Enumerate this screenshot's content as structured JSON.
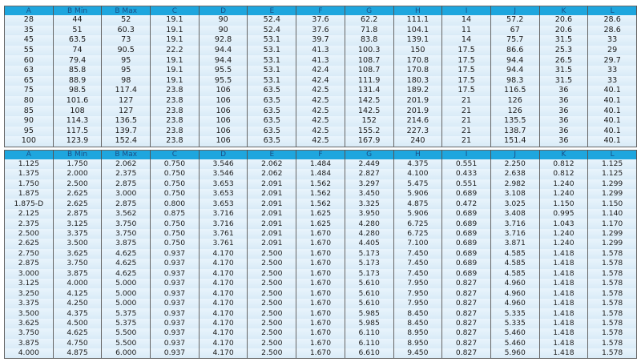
{
  "columns": [
    "A",
    "B Min",
    "B Max",
    "C",
    "D",
    "E",
    "F",
    "G",
    "H",
    "I",
    "J",
    "K",
    "L"
  ],
  "metric_rows": [
    [
      "28",
      "44",
      "52",
      "19.1",
      "90",
      "52.4",
      "37.6",
      "62.2",
      "111.1",
      "14",
      "57.2",
      "20.6",
      "28.6"
    ],
    [
      "35",
      "51",
      "60.3",
      "19.1",
      "90",
      "52.4",
      "37.6",
      "71.8",
      "104.1",
      "11",
      "67",
      "20.6",
      "28.6"
    ],
    [
      "45",
      "63.5",
      "73",
      "19.1",
      "92.8",
      "53.1",
      "39.7",
      "83.8",
      "139.1",
      "14",
      "75.7",
      "31.5",
      "33"
    ],
    [
      "55",
      "74",
      "90.5",
      "22.2",
      "94.4",
      "53.1",
      "41.3",
      "100.3",
      "150",
      "17.5",
      "86.6",
      "25.3",
      "29"
    ],
    [
      "60",
      "79.4",
      "95",
      "19.1",
      "94.4",
      "53.1",
      "41.3",
      "108.7",
      "170.8",
      "17.5",
      "94.4",
      "26.5",
      "29.7"
    ],
    [
      "63",
      "85.8",
      "95",
      "19.1",
      "95.5",
      "53.1",
      "42.4",
      "108.7",
      "170.8",
      "17.5",
      "94.4",
      "31.5",
      "33"
    ],
    [
      "65",
      "88.9",
      "98",
      "19.1",
      "95.5",
      "53.1",
      "42.4",
      "111.9",
      "180.3",
      "17.5",
      "98.3",
      "31.5",
      "33"
    ],
    [
      "75",
      "98.5",
      "117.4",
      "23.8",
      "106",
      "63.5",
      "42.5",
      "131.4",
      "189.2",
      "17.5",
      "116.5",
      "36",
      "40.1"
    ],
    [
      "80",
      "101.6",
      "127",
      "23.8",
      "106",
      "63.5",
      "42.5",
      "142.5",
      "201.9",
      "21",
      "126",
      "36",
      "40.1"
    ],
    [
      "85",
      "108",
      "127",
      "23.8",
      "106",
      "63.5",
      "42.5",
      "142.5",
      "201.9",
      "21",
      "126",
      "36",
      "40.1"
    ],
    [
      "90",
      "114.3",
      "136.5",
      "23.8",
      "106",
      "63.5",
      "42.5",
      "152",
      "214.6",
      "21",
      "135.5",
      "36",
      "40.1"
    ],
    [
      "95",
      "117.5",
      "139.7",
      "23.8",
      "106",
      "63.5",
      "42.5",
      "155.2",
      "227.3",
      "21",
      "138.7",
      "36",
      "40.1"
    ],
    [
      "100",
      "123.9",
      "152.4",
      "23.8",
      "106",
      "63.5",
      "42.5",
      "167.9",
      "240",
      "21",
      "151.4",
      "36",
      "40.1"
    ]
  ],
  "imperial_rows": [
    [
      "1.125",
      "1.750",
      "2.062",
      "0.750",
      "3.546",
      "2.062",
      "1.484",
      "2.449",
      "4.375",
      "0.551",
      "2.250",
      "0.812",
      "1.125"
    ],
    [
      "1.375",
      "2.000",
      "2.375",
      "0.750",
      "3.546",
      "2.062",
      "1.484",
      "2.827",
      "4.100",
      "0.433",
      "2.638",
      "0.812",
      "1.125"
    ],
    [
      "1.750",
      "2.500",
      "2.875",
      "0.750",
      "3.653",
      "2.091",
      "1.562",
      "3.297",
      "5.475",
      "0.551",
      "2.982",
      "1.240",
      "1.299"
    ],
    [
      "1.875",
      "2.625",
      "3.000",
      "0.750",
      "3.653",
      "2.091",
      "1.562",
      "3.450",
      "5.906",
      "0.689",
      "3.108",
      "1.240",
      "1.299"
    ],
    [
      "1.875-D",
      "2.625",
      "2.875",
      "0.800",
      "3.653",
      "2.091",
      "1.562",
      "3.325",
      "4.875",
      "0.472",
      "3.025",
      "1.150",
      "1.150"
    ],
    [
      "2.125",
      "2.875",
      "3.562",
      "0.875",
      "3.716",
      "2.091",
      "1.625",
      "3.950",
      "5.906",
      "0.689",
      "3.408",
      "0.995",
      "1.140"
    ],
    [
      "2.375",
      "3.125",
      "3.750",
      "0.750",
      "3.716",
      "2.091",
      "1.625",
      "4.280",
      "6.725",
      "0.689",
      "3.716",
      "1.043",
      "1.170"
    ],
    [
      "2.500",
      "3.375",
      "3.750",
      "0.750",
      "3.761",
      "2.091",
      "1.670",
      "4.280",
      "6.725",
      "0.689",
      "3.716",
      "1.240",
      "1.299"
    ],
    [
      "2.625",
      "3.500",
      "3.875",
      "0.750",
      "3.761",
      "2.091",
      "1.670",
      "4.405",
      "7.100",
      "0.689",
      "3.871",
      "1.240",
      "1.299"
    ],
    [
      "2.750",
      "3.625",
      "4.625",
      "0.937",
      "4.170",
      "2.500",
      "1.670",
      "5.173",
      "7.450",
      "0.689",
      "4.585",
      "1.418",
      "1.578"
    ],
    [
      "2.875",
      "3.750",
      "4.625",
      "0.937",
      "4.170",
      "2.500",
      "1.670",
      "5.173",
      "7.450",
      "0.689",
      "4.585",
      "1.418",
      "1.578"
    ],
    [
      "3.000",
      "3.875",
      "4.625",
      "0.937",
      "4.170",
      "2.500",
      "1.670",
      "5.173",
      "7.450",
      "0.689",
      "4.585",
      "1.418",
      "1.578"
    ],
    [
      "3.125",
      "4.000",
      "5.000",
      "0.937",
      "4.170",
      "2.500",
      "1.670",
      "5.610",
      "7.950",
      "0.827",
      "4.960",
      "1.418",
      "1.578"
    ],
    [
      "3.250",
      "4.125",
      "5.000",
      "0.937",
      "4.170",
      "2.500",
      "1.670",
      "5.610",
      "7.950",
      "0.827",
      "4.960",
      "1.418",
      "1.578"
    ],
    [
      "3.375",
      "4.250",
      "5.000",
      "0.937",
      "4.170",
      "2.500",
      "1.670",
      "5.610",
      "7.950",
      "0.827",
      "4.960",
      "1.418",
      "1.578"
    ],
    [
      "3.500",
      "4.375",
      "5.375",
      "0.937",
      "4.170",
      "2.500",
      "1.670",
      "5.985",
      "8.450",
      "0.827",
      "5.335",
      "1.418",
      "1.578"
    ],
    [
      "3.625",
      "4.500",
      "5.375",
      "0.937",
      "4.170",
      "2.500",
      "1.670",
      "5.985",
      "8.450",
      "0.827",
      "5.335",
      "1.418",
      "1.578"
    ],
    [
      "3.750",
      "4.625",
      "5.500",
      "0.937",
      "4.170",
      "2.500",
      "1.670",
      "6.110",
      "8.950",
      "0.827",
      "5.460",
      "1.418",
      "1.578"
    ],
    [
      "3.875",
      "4.750",
      "5.500",
      "0.937",
      "4.170",
      "2.500",
      "1.670",
      "6.110",
      "8.950",
      "0.827",
      "5.460",
      "1.418",
      "1.578"
    ],
    [
      "4.000",
      "4.875",
      "6.000",
      "0.937",
      "4.170",
      "2.500",
      "1.670",
      "6.610",
      "9.450",
      "0.827",
      "5.960",
      "1.418",
      "1.578"
    ]
  ],
  "colors": {
    "header": "#1ea6de",
    "row": "#e1f0fa"
  }
}
